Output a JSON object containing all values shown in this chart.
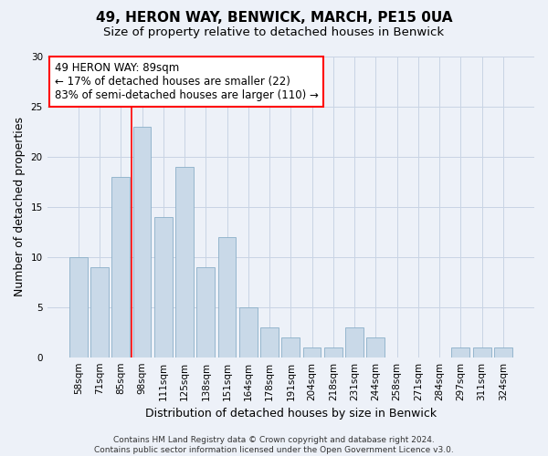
{
  "title": "49, HERON WAY, BENWICK, MARCH, PE15 0UA",
  "subtitle": "Size of property relative to detached houses in Benwick",
  "xlabel": "Distribution of detached houses by size in Benwick",
  "ylabel": "Number of detached properties",
  "categories": [
    "58sqm",
    "71sqm",
    "85sqm",
    "98sqm",
    "111sqm",
    "125sqm",
    "138sqm",
    "151sqm",
    "164sqm",
    "178sqm",
    "191sqm",
    "204sqm",
    "218sqm",
    "231sqm",
    "244sqm",
    "258sqm",
    "271sqm",
    "284sqm",
    "297sqm",
    "311sqm",
    "324sqm"
  ],
  "values": [
    10,
    9,
    18,
    23,
    14,
    19,
    9,
    12,
    5,
    3,
    2,
    1,
    1,
    3,
    2,
    0,
    0,
    0,
    1,
    1,
    1
  ],
  "bar_color": "#c9d9e8",
  "bar_edge_color": "#8aafc8",
  "grid_color": "#c8d4e4",
  "background_color": "#edf1f8",
  "annotation_text": "49 HERON WAY: 89sqm\n← 17% of detached houses are smaller (22)\n83% of semi-detached houses are larger (110) →",
  "annotation_box_color": "white",
  "annotation_box_edge_color": "red",
  "vline_x_index": 2.5,
  "vline_color": "red",
  "ylim": [
    0,
    30
  ],
  "yticks": [
    0,
    5,
    10,
    15,
    20,
    25,
    30
  ],
  "footer_text": "Contains HM Land Registry data © Crown copyright and database right 2024.\nContains public sector information licensed under the Open Government Licence v3.0.",
  "title_fontsize": 11,
  "subtitle_fontsize": 9.5,
  "xlabel_fontsize": 9,
  "ylabel_fontsize": 9,
  "tick_fontsize": 7.5,
  "annotation_fontsize": 8.5,
  "footer_fontsize": 6.5
}
